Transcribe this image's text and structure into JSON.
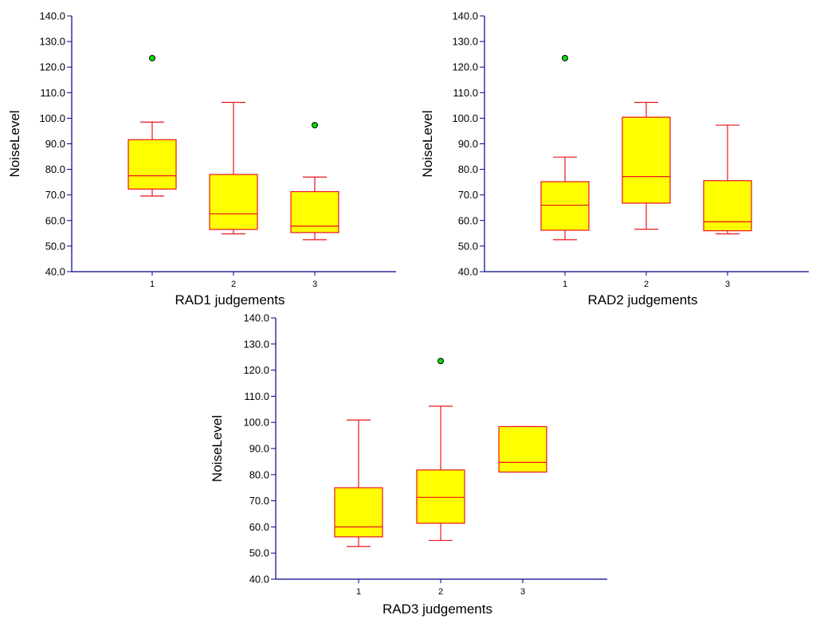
{
  "colors": {
    "axis": "#00008B",
    "box_fill": "#FFFF00",
    "box_stroke": "#E8141C",
    "outlier_fill": "#00E000",
    "outlier_stroke": "#000000"
  },
  "chart_data": [
    {
      "type": "box",
      "title": "",
      "xlabel": "RAD1 judgements",
      "ylabel": "NoiseLevel",
      "ylim": [
        40,
        140
      ],
      "yticks": [
        "40.0",
        "50.0",
        "60.0",
        "70.0",
        "80.0",
        "90.0",
        "100.0",
        "110.0",
        "120.0",
        "130.0",
        "140.0"
      ],
      "categories": [
        "1",
        "2",
        "3"
      ],
      "boxes": [
        {
          "category": "1",
          "whisker_low": 69.6,
          "q1": 72.3,
          "median": 77.5,
          "q3": 91.6,
          "whisker_high": 98.5,
          "outliers": [
            123.5
          ]
        },
        {
          "category": "2",
          "whisker_low": 54.8,
          "q1": 56.5,
          "median": 62.6,
          "q3": 78.0,
          "whisker_high": 106.2,
          "outliers": []
        },
        {
          "category": "3",
          "whisker_low": 52.5,
          "q1": 55.3,
          "median": 57.8,
          "q3": 71.3,
          "whisker_high": 77.0,
          "outliers": [
            97.3
          ]
        }
      ]
    },
    {
      "type": "box",
      "title": "",
      "xlabel": "RAD2 judgements",
      "ylabel": "NoiseLevel",
      "ylim": [
        40,
        140
      ],
      "yticks": [
        "40.0",
        "50.0",
        "60.0",
        "70.0",
        "80.0",
        "90.0",
        "100.0",
        "110.0",
        "120.0",
        "130.0",
        "140.0"
      ],
      "categories": [
        "1",
        "2",
        "3"
      ],
      "boxes": [
        {
          "category": "1",
          "whisker_low": 52.5,
          "q1": 56.2,
          "median": 66.0,
          "q3": 75.2,
          "whisker_high": 84.8,
          "outliers": [
            123.5
          ]
        },
        {
          "category": "2",
          "whisker_low": 56.6,
          "q1": 66.8,
          "median": 77.2,
          "q3": 100.4,
          "whisker_high": 106.2,
          "outliers": []
        },
        {
          "category": "3",
          "whisker_low": 54.8,
          "q1": 56.0,
          "median": 59.5,
          "q3": 75.6,
          "whisker_high": 97.3,
          "outliers": []
        }
      ]
    },
    {
      "type": "box",
      "title": "",
      "xlabel": "RAD3 judgements",
      "ylabel": "NoiseLevel",
      "ylim": [
        40,
        140
      ],
      "yticks": [
        "40.0",
        "50.0",
        "60.0",
        "70.0",
        "80.0",
        "90.0",
        "100.0",
        "110.0",
        "120.0",
        "130.0",
        "140.0"
      ],
      "categories": [
        "1",
        "2",
        "3"
      ],
      "boxes": [
        {
          "category": "1",
          "whisker_low": 52.5,
          "q1": 56.2,
          "median": 60.0,
          "q3": 75.0,
          "whisker_high": 100.9,
          "outliers": []
        },
        {
          "category": "2",
          "whisker_low": 54.8,
          "q1": 61.4,
          "median": 71.3,
          "q3": 81.8,
          "whisker_high": 106.2,
          "outliers": [
            123.5
          ]
        },
        {
          "category": "3",
          "whisker_low": 81.0,
          "q1": 81.0,
          "median": 84.7,
          "q3": 98.4,
          "whisker_high": 98.4,
          "outliers": []
        }
      ]
    }
  ]
}
